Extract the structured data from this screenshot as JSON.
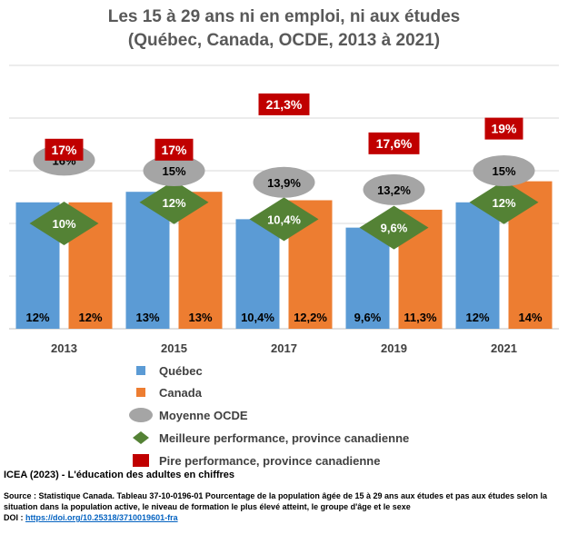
{
  "title_line1": "Les 15 à 29 ans ni en emploi, ni aux études",
  "title_line2": "(Québec, Canada, OCDE, 2013 à 2021)",
  "chart_data": {
    "type": "bar",
    "categories": [
      "2013",
      "2015",
      "2017",
      "2019",
      "2021"
    ],
    "series": [
      {
        "name": "Québec",
        "values": [
          12,
          13,
          10.4,
          9.6,
          12
        ],
        "labels": [
          "12%",
          "13%",
          "10,4%",
          "9,6%",
          "12%"
        ],
        "color": "#5B9BD5"
      },
      {
        "name": "Canada",
        "values": [
          12,
          13,
          12.2,
          11.3,
          14
        ],
        "labels": [
          "12%",
          "13%",
          "12,2%",
          "11,3%",
          "14%"
        ],
        "color": "#ED7D31"
      },
      {
        "name": "Moyenne OCDE",
        "values": [
          16,
          15,
          13.9,
          13.2,
          15
        ],
        "labels": [
          "16%",
          "15%",
          "13,9%",
          "13,2%",
          "15%"
        ],
        "color": "#A5A5A5"
      },
      {
        "name": "Meilleure performance, province canadienne",
        "values": [
          10,
          12,
          10.4,
          9.6,
          12
        ],
        "labels": [
          "10%",
          "12%",
          "10,4%",
          "9,6%",
          "12%"
        ],
        "color": "#548235"
      },
      {
        "name": "Pire performance, province canadienne",
        "values": [
          17,
          17,
          21.3,
          17.6,
          19
        ],
        "labels": [
          "17%",
          "17%",
          "21,3%",
          "17,6%",
          "19%"
        ],
        "color": "#C00000"
      }
    ],
    "ylim": [
      0,
      25
    ],
    "grid": true,
    "legend_position": "bottom"
  },
  "legend": [
    {
      "label": "Québec",
      "shape": "square",
      "color": "#5B9BD5"
    },
    {
      "label": "Canada",
      "shape": "square",
      "color": "#ED7D31"
    },
    {
      "label": "Moyenne OCDE",
      "shape": "ellipse",
      "color": "#A5A5A5"
    },
    {
      "label": "Meilleure performance, province canadienne",
      "shape": "diamond",
      "color": "#548235"
    },
    {
      "label": "Pire performance, province canadienne",
      "shape": "rect",
      "color": "#C00000"
    }
  ],
  "footer": {
    "credit": "ICEA (2023) - L'éducation des adultes en chiffres",
    "source_line1": "Source : Statistique Canada.  Tableau 37-10-0196-01 Pourcentage de la population  âgée de 15 à 29 ans aux études et pas aux études selon la",
    "source_line2": "situation dans la population  active, le niveau de formation le plus élevé atteint, le groupe d'âge et le sexe",
    "doi_label": "DOI : ",
    "doi_link": "https://doi.org/10.25318/3710019601-fra"
  }
}
